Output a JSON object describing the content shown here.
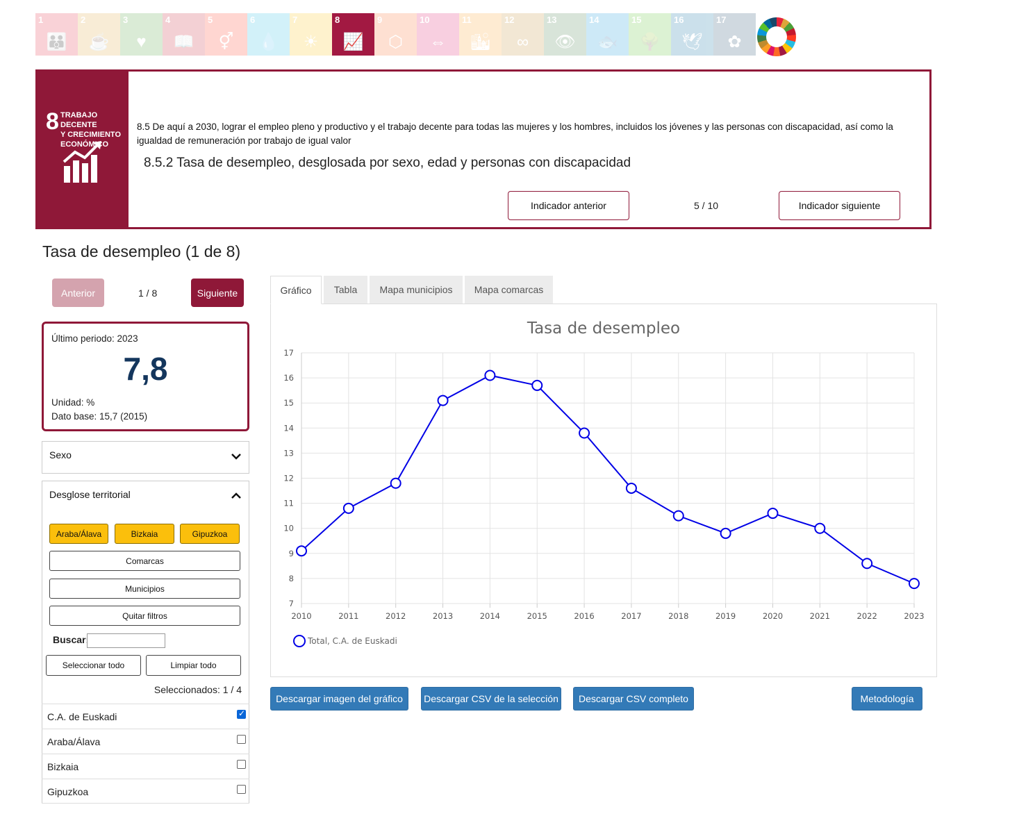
{
  "sdg_strip": {
    "tiles": [
      {
        "num": "1",
        "color": "#e5243b",
        "glyph": "👪",
        "icon": "no-poverty-icon",
        "active": false
      },
      {
        "num": "2",
        "color": "#dda63a",
        "glyph": "☕",
        "icon": "zero-hunger-icon",
        "active": false
      },
      {
        "num": "3",
        "color": "#4c9f38",
        "glyph": "♥",
        "icon": "good-health-icon",
        "active": false
      },
      {
        "num": "4",
        "color": "#c5192d",
        "glyph": "📖",
        "icon": "quality-education-icon",
        "active": false
      },
      {
        "num": "5",
        "color": "#ff3a21",
        "glyph": "⚥",
        "icon": "gender-equality-icon",
        "active": false
      },
      {
        "num": "6",
        "color": "#26bde2",
        "glyph": "💧",
        "icon": "clean-water-icon",
        "active": false
      },
      {
        "num": "7",
        "color": "#fcc30b",
        "glyph": "☀",
        "icon": "clean-energy-icon",
        "active": false
      },
      {
        "num": "8",
        "color": "#a21942",
        "glyph": "📈",
        "icon": "decent-work-icon",
        "active": true
      },
      {
        "num": "9",
        "color": "#fd6925",
        "glyph": "⬡",
        "icon": "industry-innovation-icon",
        "active": false
      },
      {
        "num": "10",
        "color": "#dd1367",
        "glyph": "⇔",
        "icon": "reduced-inequalities-icon",
        "active": false
      },
      {
        "num": "11",
        "color": "#fd9d24",
        "glyph": "🏙",
        "icon": "sustainable-cities-icon",
        "active": false
      },
      {
        "num": "12",
        "color": "#bf8b2e",
        "glyph": "∞",
        "icon": "responsible-consumption-icon",
        "active": false
      },
      {
        "num": "13",
        "color": "#3f7e44",
        "glyph": "👁",
        "icon": "climate-action-icon",
        "active": false
      },
      {
        "num": "14",
        "color": "#0a97d9",
        "glyph": "🐟",
        "icon": "life-below-water-icon",
        "active": false
      },
      {
        "num": "15",
        "color": "#56c02b",
        "glyph": "🌳",
        "icon": "life-on-land-icon",
        "active": false
      },
      {
        "num": "16",
        "color": "#00689d",
        "glyph": "🕊",
        "icon": "peace-justice-icon",
        "active": false
      },
      {
        "num": "17",
        "color": "#19486a",
        "glyph": "✿",
        "icon": "partnerships-icon",
        "active": false
      }
    ]
  },
  "goal": {
    "number": "8",
    "title_line1": "TRABAJO DECENTE",
    "title_line2": "Y CRECIMIENTO",
    "title_line3": "ECONÓMICO",
    "color": "#8f1838",
    "target_text": "8.5 De aquí a 2030, lograr el empleo pleno y productivo y el trabajo decente para todas las mujeres y los hombres, incluidos los jóvenes y las personas con discapacidad, así como la igualdad de remuneración por trabajo de igual valor",
    "indicator_title": "8.5.2 Tasa de desempleo, desglosada por sexo, edad y personas con discapacidad",
    "prev_indicator_label": "Indicador anterior",
    "next_indicator_label": "Indicador siguiente",
    "indicator_counter": "5 / 10"
  },
  "section": {
    "title": "Tasa de desempleo (1 de 8)",
    "prev_label": "Anterior",
    "next_label": "Siguiente",
    "counter": "1 / 8"
  },
  "summary": {
    "last_period": "Último periodo: 2023",
    "value": "7,8",
    "unit": "Unidad: %",
    "base": "Dato base: 15,7 (2015)"
  },
  "filters": {
    "sexo_label": "Sexo",
    "territorial_label": "Desglose territorial",
    "chips": [
      "Araba/Álava",
      "Bizkaia",
      "Gipuzkoa"
    ],
    "comarcas_label": "Comarcas",
    "municipios_label": "Municipios",
    "clear_filters_label": "Quitar filtros",
    "search_label": "Buscar:",
    "select_all_label": "Seleccionar todo",
    "clear_all_label": "Limpiar todo",
    "selected_count": "Seleccionados: 1 / 4",
    "items": [
      {
        "label": "C.A. de Euskadi",
        "checked": true
      },
      {
        "label": "Araba/Álava",
        "checked": false
      },
      {
        "label": "Bizkaia",
        "checked": false
      },
      {
        "label": "Gipuzkoa",
        "checked": false
      }
    ]
  },
  "tabs": [
    "Gráfico",
    "Tabla",
    "Mapa municipios",
    "Mapa comarcas"
  ],
  "chart_data": {
    "type": "line",
    "title": "Tasa de desempleo",
    "xlabel": "",
    "ylabel": "",
    "x": [
      "2010",
      "2011",
      "2012",
      "2013",
      "2014",
      "2015",
      "2016",
      "2017",
      "2018",
      "2019",
      "2020",
      "2021",
      "2022",
      "2023"
    ],
    "series": [
      {
        "name": "Total, C.A. de Euskadi",
        "color": "#0000e6",
        "values": [
          9.1,
          10.8,
          11.8,
          15.1,
          16.1,
          15.7,
          13.8,
          11.6,
          10.5,
          9.8,
          10.6,
          10.0,
          8.6,
          7.8
        ]
      }
    ],
    "ylim": [
      7,
      17
    ],
    "yticks": [
      7,
      8,
      9,
      10,
      11,
      12,
      13,
      14,
      15,
      16,
      17
    ],
    "grid": true,
    "legend": "bottom-left"
  },
  "downloads": {
    "image_label": "Descargar imagen del gráfico",
    "csv_selection_label": "Descargar CSV de la selección",
    "csv_full_label": "Descargar CSV completo",
    "methodology_label": "Metodología",
    "button_color": "#337ab7"
  }
}
